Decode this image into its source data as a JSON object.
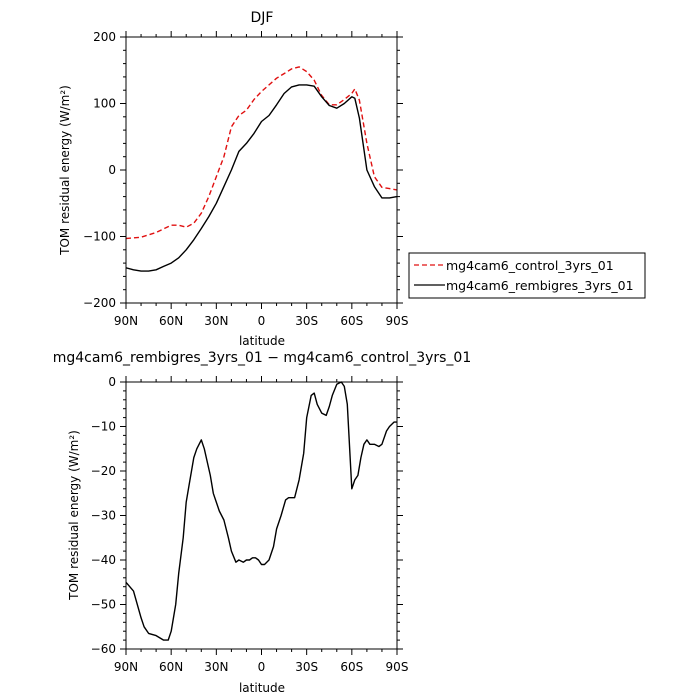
{
  "chart_data": [
    {
      "type": "line",
      "title": "DJF",
      "xlabel": "latitude",
      "ylabel": "TOM residual energy (W/m²)",
      "x_ticks": [
        {
          "value": 90,
          "label": "90N"
        },
        {
          "value": 60,
          "label": "60N"
        },
        {
          "value": 30,
          "label": "30N"
        },
        {
          "value": 0,
          "label": "0"
        },
        {
          "value": -30,
          "label": "30S"
        },
        {
          "value": -60,
          "label": "60S"
        },
        {
          "value": -90,
          "label": "90S"
        }
      ],
      "xlim": [
        90,
        -90
      ],
      "ylim": [
        -200,
        200
      ],
      "y_ticks": [
        {
          "value": 200,
          "label": "200"
        },
        {
          "value": 100,
          "label": "100"
        },
        {
          "value": 0,
          "label": "0"
        },
        {
          "value": -100,
          "label": "−100"
        },
        {
          "value": -200,
          "label": "−200"
        }
      ],
      "legend": "right",
      "series": [
        {
          "name": "mg4cam6_control_3yrs_01",
          "color": "#e01010",
          "dash": "dashed",
          "x": [
            90,
            80,
            70,
            60,
            55,
            50,
            45,
            40,
            35,
            30,
            25,
            20,
            15,
            10,
            5,
            0,
            -5,
            -10,
            -15,
            -20,
            -25,
            -30,
            -35,
            -40,
            -45,
            -50,
            -55,
            -60,
            -62,
            -65,
            -70,
            -75,
            -80,
            -85,
            -90
          ],
          "y": [
            -103,
            -101,
            -94,
            -83,
            -83,
            -86,
            -80,
            -65,
            -40,
            -10,
            20,
            65,
            82,
            90,
            106,
            118,
            128,
            138,
            145,
            152,
            155,
            148,
            135,
            112,
            98,
            98,
            106,
            115,
            122,
            105,
            40,
            -10,
            -26,
            -28,
            -30
          ]
        },
        {
          "name": "mg4cam6_rembigres_3yrs_01",
          "color": "#000000",
          "dash": "solid",
          "x": [
            90,
            85,
            80,
            75,
            70,
            65,
            60,
            55,
            50,
            45,
            40,
            35,
            30,
            25,
            20,
            15,
            10,
            5,
            0,
            -5,
            -10,
            -15,
            -20,
            -25,
            -30,
            -35,
            -40,
            -45,
            -50,
            -55,
            -60,
            -62,
            -65,
            -70,
            -75,
            -80,
            -85,
            -90
          ],
          "y": [
            -147,
            -150,
            -152,
            -152,
            -150,
            -145,
            -140,
            -132,
            -120,
            -105,
            -88,
            -70,
            -50,
            -25,
            0,
            28,
            40,
            55,
            73,
            82,
            98,
            115,
            125,
            128,
            128,
            126,
            110,
            97,
            93,
            100,
            110,
            108,
            78,
            0,
            -25,
            -42,
            -42,
            -40
          ]
        }
      ]
    },
    {
      "type": "line",
      "title": "mg4cam6_rembigres_3yrs_01 − mg4cam6_control_3yrs_01",
      "xlabel": "latitude",
      "ylabel": "TOM residual energy (W/m²)",
      "x_ticks": [
        {
          "value": 90,
          "label": "90N"
        },
        {
          "value": 60,
          "label": "60N"
        },
        {
          "value": 30,
          "label": "30N"
        },
        {
          "value": 0,
          "label": "0"
        },
        {
          "value": -30,
          "label": "30S"
        },
        {
          "value": -60,
          "label": "60S"
        },
        {
          "value": -90,
          "label": "90S"
        }
      ],
      "xlim": [
        90,
        -90
      ],
      "ylim": [
        -60,
        0
      ],
      "y_ticks": [
        {
          "value": 0,
          "label": "0"
        },
        {
          "value": -10,
          "label": "−10"
        },
        {
          "value": -20,
          "label": "−20"
        },
        {
          "value": -30,
          "label": "−30"
        },
        {
          "value": -40,
          "label": "−40"
        },
        {
          "value": -50,
          "label": "−50"
        },
        {
          "value": -60,
          "label": "−60"
        }
      ],
      "series": [
        {
          "color": "#000000",
          "dash": "solid",
          "x": [
            90,
            85,
            80,
            78,
            75,
            70,
            65,
            62,
            60,
            57,
            55,
            52,
            50,
            48,
            45,
            43,
            40,
            38,
            36,
            34,
            32,
            30,
            28,
            25,
            22,
            20,
            17,
            15,
            12,
            10,
            8,
            6,
            4,
            2,
            0,
            -2,
            -5,
            -8,
            -10,
            -13,
            -16,
            -18,
            -22,
            -25,
            -28,
            -30,
            -33,
            -35,
            -37,
            -40,
            -43,
            -45,
            -47,
            -50,
            -53,
            -55,
            -57,
            -60,
            -62,
            -64,
            -66,
            -68,
            -70,
            -72,
            -75,
            -78,
            -80,
            -83,
            -85,
            -88,
            -90
          ],
          "y": [
            -45,
            -47,
            -53,
            -55,
            -56.5,
            -57,
            -58,
            -58,
            -56,
            -50,
            -43,
            -35,
            -27,
            -23,
            -17,
            -15,
            -13,
            -15,
            -18,
            -21,
            -25,
            -27,
            -29,
            -31,
            -35,
            -38,
            -40.5,
            -40,
            -40.5,
            -40,
            -40,
            -39.5,
            -39.5,
            -40,
            -41,
            -41,
            -40,
            -37,
            -33,
            -30,
            -26.5,
            -26,
            -26,
            -22,
            -16,
            -8,
            -3,
            -2.5,
            -5,
            -7,
            -7.5,
            -5.5,
            -3,
            -0.5,
            0,
            -1,
            -5,
            -24,
            -22,
            -21,
            -17,
            -14,
            -13,
            -14,
            -14,
            -14.5,
            -14,
            -11,
            -10,
            -9,
            -9
          ]
        }
      ]
    }
  ]
}
